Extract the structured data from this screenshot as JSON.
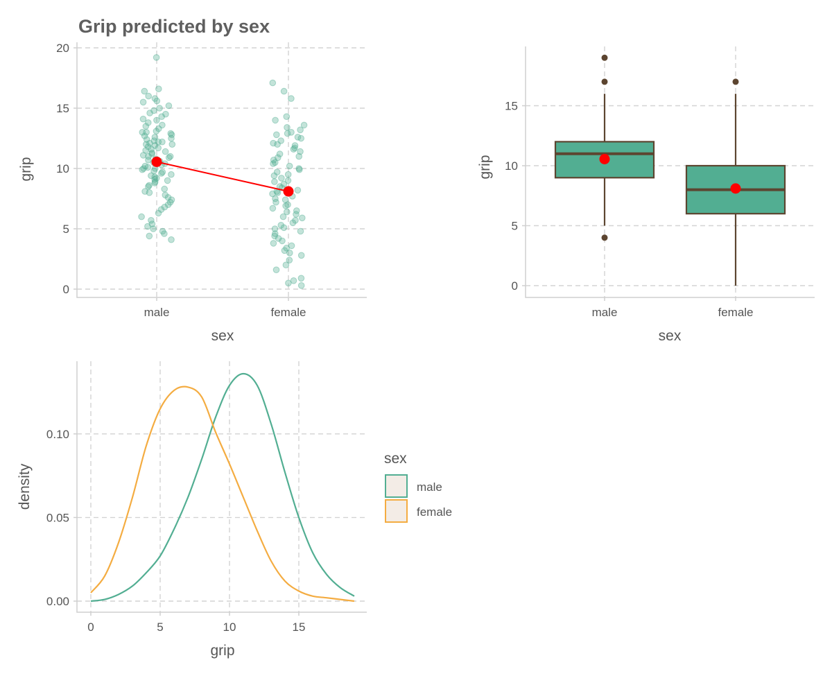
{
  "colors": {
    "male": "#52ae92",
    "female": "#f4ac41",
    "mean": "#ff0000",
    "box_line": "#5c4530",
    "legend_key_fill": "#f3ece6",
    "text": "#555555"
  },
  "chart_data": [
    {
      "type": "scatter",
      "title": "Grip predicted by sex",
      "xlabel": "sex",
      "ylabel": "grip",
      "categories": [
        "male",
        "female"
      ],
      "ylim": [
        0,
        20
      ],
      "yticks": [
        0,
        5,
        10,
        15,
        20
      ],
      "grid": true,
      "series": [
        {
          "category": "male",
          "values": [
            19.2,
            16.6,
            16.4,
            16.0,
            15.8,
            15.6,
            15.5,
            15.2,
            15.0,
            14.8,
            14.6,
            14.5,
            14.3,
            14.1,
            14.0,
            13.8,
            13.6,
            13.5,
            13.3,
            13.1,
            13.0,
            13.0,
            12.9,
            12.8,
            12.7,
            12.6,
            12.5,
            12.4,
            12.3,
            12.2,
            12.2,
            12.1,
            12.0,
            12.0,
            11.9,
            11.8,
            11.7,
            11.6,
            11.5,
            11.4,
            11.3,
            11.2,
            11.1,
            11.0,
            11.0,
            10.9,
            10.8,
            10.7,
            10.6,
            10.5,
            10.4,
            10.3,
            10.2,
            10.1,
            10.0,
            10.0,
            9.9,
            9.8,
            9.7,
            9.6,
            9.5,
            9.4,
            9.3,
            9.2,
            9.1,
            9.0,
            8.9,
            8.8,
            8.6,
            8.5,
            8.3,
            8.1,
            8.0,
            7.8,
            7.6,
            7.4,
            7.2,
            7.0,
            6.8,
            6.6,
            6.3,
            6.0,
            5.7,
            5.4,
            5.2,
            5.0,
            4.8,
            4.6,
            4.4,
            4.1
          ],
          "mean": 10.55
        },
        {
          "category": "female",
          "values": [
            17.1,
            16.4,
            15.8,
            14.3,
            14.0,
            13.6,
            13.4,
            13.2,
            13.0,
            12.9,
            12.8,
            12.6,
            12.5,
            12.3,
            12.1,
            12.0,
            11.9,
            11.7,
            11.6,
            11.4,
            11.2,
            11.0,
            10.9,
            10.7,
            10.5,
            10.4,
            10.2,
            10.0,
            9.9,
            9.7,
            9.5,
            9.4,
            9.2,
            9.0,
            8.9,
            8.7,
            8.5,
            8.4,
            8.2,
            8.1,
            8.0,
            7.9,
            7.7,
            7.5,
            7.4,
            7.2,
            7.0,
            6.9,
            6.7,
            6.5,
            6.4,
            6.2,
            6.0,
            5.9,
            5.7,
            5.5,
            5.3,
            5.1,
            5.0,
            4.8,
            4.6,
            4.4,
            4.2,
            4.0,
            3.8,
            3.6,
            3.4,
            3.2,
            3.0,
            2.8,
            2.4,
            2.0,
            1.6,
            0.9,
            0.7,
            0.5,
            0.3
          ],
          "mean": 8.1
        }
      ]
    },
    {
      "type": "box",
      "title": "",
      "xlabel": "sex",
      "ylabel": "grip",
      "categories": [
        "male",
        "female"
      ],
      "ylim": [
        0,
        19
      ],
      "yticks": [
        0,
        5,
        10,
        15
      ],
      "grid": true,
      "boxes": [
        {
          "category": "male",
          "whisker_low": 5,
          "q1": 9,
          "median": 11,
          "q3": 12,
          "whisker_high": 16,
          "mean": 10.55,
          "outliers": [
            19,
            17,
            4
          ]
        },
        {
          "category": "female",
          "whisker_low": 0,
          "q1": 6,
          "median": 8,
          "q3": 10,
          "whisker_high": 16,
          "mean": 8.1,
          "outliers": [
            17
          ]
        }
      ]
    },
    {
      "type": "line",
      "title": "",
      "xlabel": "grip",
      "ylabel": "density",
      "xlim": [
        0,
        19
      ],
      "ylim": [
        0,
        0.136
      ],
      "xticks": [
        0,
        5,
        10,
        15
      ],
      "yticks": [
        0.0,
        0.05,
        0.1
      ],
      "ytick_labels": [
        "0.00",
        "0.05",
        "0.10"
      ],
      "grid": true,
      "legend": {
        "title": "sex",
        "position": "right",
        "items": [
          "male",
          "female"
        ]
      },
      "series": [
        {
          "name": "male",
          "x": [
            0,
            1,
            2,
            3,
            4,
            5,
            6,
            7,
            8,
            9,
            10,
            11,
            12,
            13,
            14,
            15,
            16,
            17,
            18,
            19
          ],
          "y": [
            0.0,
            0.001,
            0.004,
            0.009,
            0.017,
            0.027,
            0.043,
            0.062,
            0.085,
            0.11,
            0.129,
            0.136,
            0.129,
            0.106,
            0.077,
            0.05,
            0.029,
            0.016,
            0.008,
            0.003
          ]
        },
        {
          "name": "female",
          "x": [
            0,
            1,
            2,
            3,
            4,
            5,
            6,
            7,
            8,
            9,
            10,
            11,
            12,
            13,
            14,
            15,
            16,
            17,
            18,
            19
          ],
          "y": [
            0.005,
            0.015,
            0.035,
            0.062,
            0.093,
            0.115,
            0.126,
            0.128,
            0.122,
            0.101,
            0.082,
            0.062,
            0.042,
            0.024,
            0.012,
            0.006,
            0.003,
            0.002,
            0.001,
            0.0
          ]
        }
      ]
    }
  ]
}
